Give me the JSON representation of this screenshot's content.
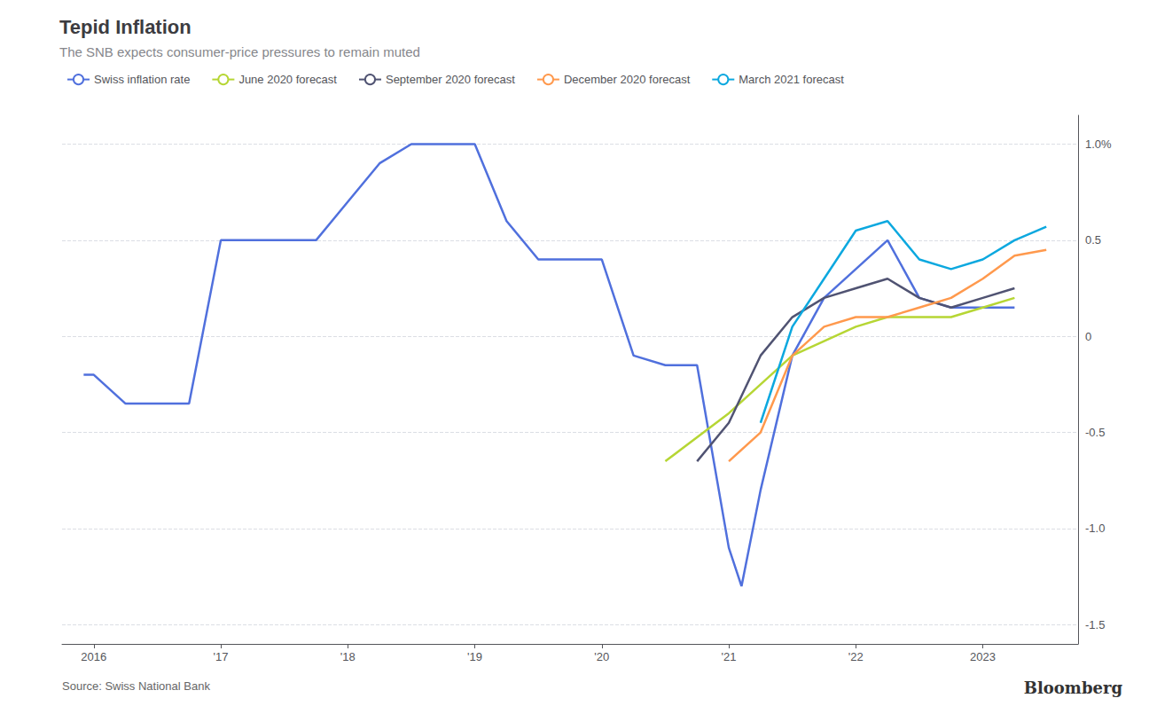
{
  "chart_data": {
    "type": "line",
    "title": "Tepid Inflation",
    "subtitle": "The SNB expects consumer-price pressures to remain muted",
    "source": "Source: Swiss National Bank",
    "annotations": [
      "Bloomberg"
    ],
    "series": [
      {
        "name": "Swiss inflation rate",
        "x": [
          2015.92,
          2016.0,
          2016.25,
          2016.5,
          2016.75,
          2017.0,
          2017.25,
          2017.5,
          2017.75,
          2018.0,
          2018.25,
          2018.5,
          2018.75,
          2019.0,
          2019.25,
          2019.5,
          2019.75,
          2020.0,
          2020.25,
          2020.5,
          2020.75,
          2021.0,
          2021.1,
          2021.25,
          2021.5,
          2021.75,
          2022.0,
          2022.25,
          2022.5,
          2022.75,
          2023.0,
          2023.25
        ],
        "values": [
          -0.2,
          -0.2,
          -0.35,
          -0.35,
          -0.35,
          0.5,
          0.5,
          0.5,
          0.5,
          0.7,
          0.9,
          1.0,
          1.0,
          1.0,
          0.6,
          0.4,
          0.4,
          0.4,
          -0.1,
          -0.15,
          -0.15,
          -1.1,
          -1.3,
          -0.8,
          -0.1,
          0.2,
          0.35,
          0.5,
          0.2,
          0.15,
          0.15,
          0.15
        ]
      },
      {
        "name": "June 2020 forecast",
        "x": [
          2020.5,
          2021.0,
          2021.5,
          2022.0,
          2022.25,
          2022.5,
          2022.75,
          2023.0,
          2023.25
        ],
        "values": [
          -0.65,
          -0.4,
          -0.1,
          0.05,
          0.1,
          0.1,
          0.1,
          0.15,
          0.2
        ]
      },
      {
        "name": "September 2020 forecast",
        "x": [
          2020.75,
          2021.0,
          2021.25,
          2021.5,
          2021.75,
          2022.0,
          2022.25,
          2022.5,
          2022.75,
          2023.0,
          2023.25
        ],
        "values": [
          -0.65,
          -0.45,
          -0.1,
          0.1,
          0.2,
          0.25,
          0.3,
          0.2,
          0.15,
          0.2,
          0.25
        ]
      },
      {
        "name": "December 2020 forecast",
        "x": [
          2021.0,
          2021.25,
          2021.5,
          2021.75,
          2022.0,
          2022.25,
          2022.5,
          2022.75,
          2023.0,
          2023.25,
          2023.5
        ],
        "values": [
          -0.65,
          -0.5,
          -0.1,
          0.05,
          0.1,
          0.1,
          0.15,
          0.2,
          0.3,
          0.42,
          0.45
        ]
      },
      {
        "name": "March 2021 forecast",
        "x": [
          2021.25,
          2021.5,
          2021.75,
          2022.0,
          2022.25,
          2022.5,
          2022.75,
          2023.0,
          2023.25,
          2023.5
        ],
        "values": [
          -0.45,
          0.05,
          0.3,
          0.55,
          0.6,
          0.4,
          0.35,
          0.4,
          0.5,
          0.57
        ]
      }
    ],
    "xlim": [
      2015.75,
      2023.75
    ],
    "xticks": [
      2016,
      {
        "value": 2017,
        "label": "'17"
      },
      {
        "value": 2018,
        "label": "'18"
      },
      {
        "value": 2019,
        "label": "'19"
      },
      {
        "value": 2020,
        "label": "'20"
      },
      {
        "value": 2021,
        "label": "'21"
      },
      {
        "value": 2022,
        "label": "'22"
      },
      2023
    ],
    "ylim": [
      -1.6,
      1.15
    ],
    "yticks": [
      -1.5,
      {
        "value": -1.0,
        "label": "-1.0"
      },
      -0.5,
      0,
      0.5,
      {
        "value": 1.0,
        "label": "1.0%"
      }
    ],
    "grid": true,
    "legend": "top-left"
  }
}
